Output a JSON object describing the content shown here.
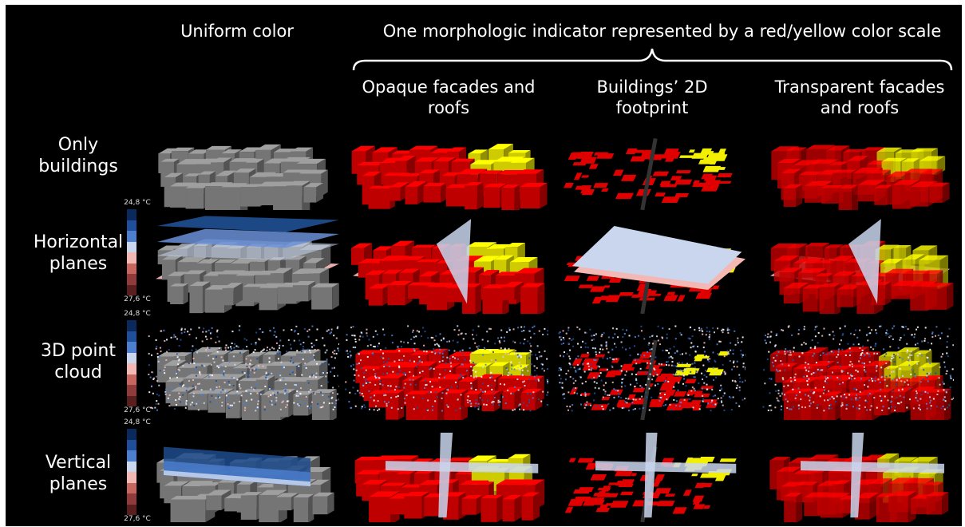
{
  "headers": {
    "uniform": "Uniform color",
    "group_line1": "One morphologic indicator represented by a red/yellow color scale",
    "opaque_l1": "Opaque facades and",
    "opaque_l2": "roofs",
    "footprint_l1": "Buildings’ 2D",
    "footprint_l2": "footprint",
    "transparent_l1": "Transparent facades",
    "transparent_l2": "and roofs"
  },
  "rows": {
    "r1_l1": "Only",
    "r1_l2": "buildings",
    "r2_l1": "Horizontal",
    "r2_l2": "planes",
    "r3_l1": "3D point",
    "r3_l2": "cloud",
    "r4_l1": "Vertical",
    "r4_l2": "planes"
  },
  "legend": {
    "top": "24,8 °C",
    "bottom": "27,6 °C",
    "colors": [
      "#0a2a5e",
      "#1f4f9a",
      "#4d7fd0",
      "#c9d6ee",
      "#f2b9b4",
      "#c7665f",
      "#8f3b3b",
      "#5a1e1e"
    ]
  },
  "colors": {
    "background": "#000000",
    "building_gray": "#8a8a8a",
    "indicator_red": "#e00000",
    "indicator_yellow": "#f2f000",
    "plane_blue_dark": "#1d4c8c",
    "plane_blue_light": "#c9d6ee",
    "plane_pink": "#f4b8b4"
  }
}
